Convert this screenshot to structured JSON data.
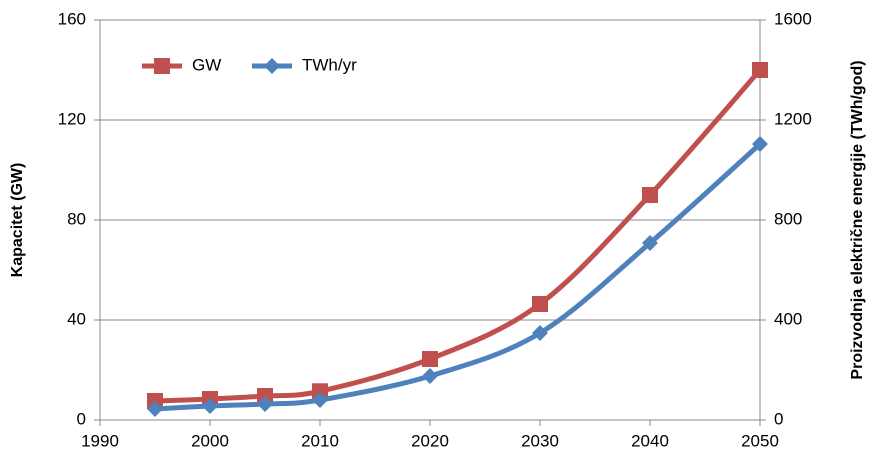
{
  "chart_data": {
    "type": "line",
    "x": [
      1995,
      2000,
      2005,
      2010,
      2020,
      2030,
      2040,
      2050
    ],
    "series": [
      {
        "name": "GW",
        "color": "#c0504d",
        "marker": "square",
        "values": [
          7.6,
          8.4,
          9.6,
          11.5,
          24.4,
          46.4,
          90,
          140
        ]
      },
      {
        "name": "TWh/yr",
        "color": "#4f81bd",
        "marker": "diamond",
        "axis": "y2",
        "values": [
          44,
          56,
          64,
          80,
          176,
          348,
          708,
          1104
        ]
      }
    ],
    "xlim": [
      1990,
      2050
    ],
    "xticks": [
      1990,
      2000,
      2010,
      2020,
      2030,
      2040,
      2050
    ],
    "ylim": [
      0,
      160
    ],
    "yticks": [
      0,
      40,
      80,
      120,
      160
    ],
    "y2lim": [
      0,
      1600
    ],
    "y2ticks": [
      0,
      400,
      800,
      1200,
      1600
    ],
    "ylabel": "Kapacitet (GW)",
    "y2label": "Proizvodnja električne energije (TWh/god)",
    "grid": true,
    "legend": "upper left"
  }
}
